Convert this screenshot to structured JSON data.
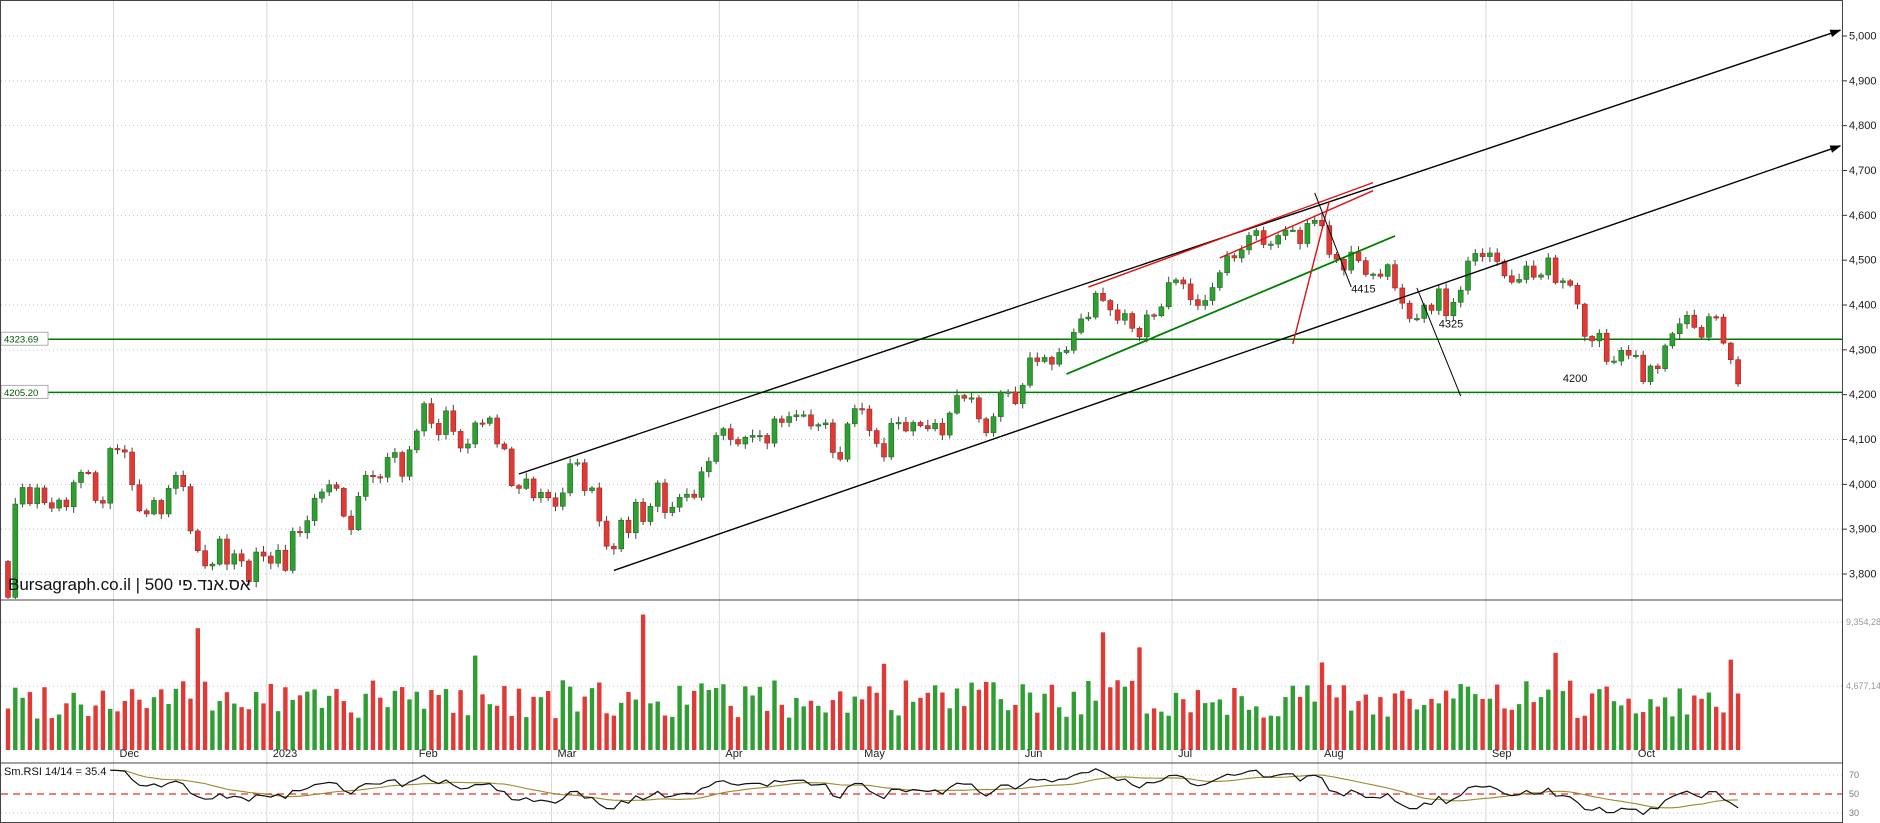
{
  "chart_data": {
    "type": "candlestick",
    "title": "Bursagraph.co.il | אס.אנד.פי 500",
    "price_axis": {
      "min": 3800,
      "max": 5000,
      "step": 100,
      "ticks": [
        "5,000",
        "4,900",
        "4,800",
        "4,700",
        "4,600",
        "4,500",
        "4,400",
        "4,300",
        "4,200",
        "4,100",
        "4,000",
        "3,900",
        "3,800"
      ]
    },
    "x_axis": {
      "months": [
        {
          "label": "Dec",
          "i": 15
        },
        {
          "label": "2023",
          "i": 36
        },
        {
          "label": "Feb",
          "i": 56
        },
        {
          "label": "Mar",
          "i": 75
        },
        {
          "label": "Apr",
          "i": 98
        },
        {
          "label": "May",
          "i": 117
        },
        {
          "label": "Jun",
          "i": 139
        },
        {
          "label": "Jul",
          "i": 160
        },
        {
          "label": "Aug",
          "i": 180
        },
        {
          "label": "Sep",
          "i": 203
        },
        {
          "label": "Oct",
          "i": 223
        }
      ]
    },
    "candles": {
      "first_open": 3828,
      "closes": [
        3748,
        3956,
        3993,
        3957,
        3992,
        3959,
        3947,
        3965,
        3950,
        4004,
        4027,
        4026,
        3964,
        3958,
        4080,
        4077,
        4072,
        3999,
        3941,
        3934,
        3964,
        3934,
        3991,
        4020,
        3995,
        3896,
        3852,
        3818,
        3822,
        3878,
        3822,
        3845,
        3829,
        3783,
        3849,
        3840,
        3824,
        3853,
        3808,
        3895,
        3892,
        3919,
        3969,
        3983,
        3999,
        3991,
        3929,
        3899,
        3973,
        4020,
        4017,
        4016,
        4060,
        4071,
        4018,
        4077,
        4119,
        4180,
        4136,
        4111,
        4164,
        4118,
        4081,
        4090,
        4137,
        4136,
        4148,
        4090,
        4079,
        3997,
        3991,
        4012,
        3970,
        3982,
        3970,
        3951,
        3981,
        4046,
        4048,
        3986,
        3992,
        3918,
        3862,
        3856,
        3920,
        3892,
        3960,
        3917,
        3951,
        4003,
        3937,
        3949,
        3971,
        3978,
        3971,
        4028,
        4051,
        4109,
        4124,
        4100,
        4090,
        4105,
        4109,
        4109,
        4092,
        4146,
        4138,
        4151,
        4155,
        4155,
        4130,
        4133,
        4137,
        4071,
        4056,
        4135,
        4169,
        4168,
        4120,
        4091,
        4061,
        4136,
        4138,
        4119,
        4138,
        4131,
        4124,
        4136,
        4110,
        4159,
        4198,
        4192,
        4193,
        4146,
        4115,
        4151,
        4205,
        4206,
        4180,
        4221,
        4282,
        4274,
        4283,
        4268,
        4294,
        4299,
        4339,
        4369,
        4373,
        4426,
        4410,
        4389,
        4366,
        4381,
        4348,
        4329,
        4378,
        4376,
        4396,
        4450,
        4456,
        4447,
        4412,
        4399,
        4410,
        4439,
        4472,
        4510,
        4505,
        4523,
        4555,
        4566,
        4535,
        4536,
        4555,
        4567,
        4567,
        4537,
        4582,
        4589,
        4577,
        4513,
        4502,
        4478,
        4518,
        4499,
        4468,
        4469,
        4464,
        4490,
        4438,
        4404,
        4370,
        4370,
        4400,
        4388,
        4436,
        4376,
        4406,
        4433,
        4498,
        4515,
        4508,
        4516,
        4497,
        4465,
        4451,
        4457,
        4487,
        4462,
        4467,
        4505,
        4450,
        4454,
        4444,
        4402,
        4330,
        4320,
        4337,
        4274,
        4275,
        4299,
        4288,
        4288,
        4229,
        4264,
        4258,
        4309,
        4336,
        4358,
        4377,
        4350,
        4328,
        4374,
        4373,
        4315,
        4278,
        4224
      ]
    },
    "support_lines": [
      {
        "label": "4323.69",
        "price": 4323.69
      },
      {
        "label": "4205.20",
        "price": 4205.2
      }
    ],
    "trendlines": [
      {
        "name": "channel-upper-line",
        "color": "#000000",
        "width": 1.4,
        "i1": 70,
        "p1": 4023,
        "i2": 251,
        "p2": 5013,
        "arrow": true
      },
      {
        "name": "channel-lower-line",
        "color": "#000000",
        "width": 1.4,
        "i1": 83,
        "p1": 3808,
        "i2": 251,
        "p2": 4755,
        "arrow": true
      },
      {
        "name": "green-trend-support-line",
        "color": "#008000",
        "width": 1.8,
        "i1": 145,
        "p1": 4246,
        "i2": 190,
        "p2": 4554,
        "arrow": false
      },
      {
        "name": "red-resistance-line",
        "color": "#dd1111",
        "width": 1.4,
        "i1": 148,
        "p1": 4440,
        "i2": 187,
        "p2": 4673,
        "arrow": false
      },
      {
        "name": "red-wedge-lower-line",
        "color": "#dd1111",
        "width": 1.4,
        "i1": 166,
        "p1": 4505,
        "i2": 187,
        "p2": 4655,
        "arrow": false
      },
      {
        "name": "red-breakdown-line",
        "color": "#dd1111",
        "width": 1.4,
        "i1": 176,
        "p1": 4313,
        "i2": 181,
        "p2": 4632,
        "arrow": false
      },
      {
        "name": "pointer-line-4415",
        "color": "#000000",
        "width": 1,
        "i1": 179,
        "p1": 4650,
        "i2": 184,
        "p2": 4440,
        "arrow": false
      },
      {
        "name": "pointer-line-4325",
        "color": "#000000",
        "width": 1,
        "i1": 193,
        "p1": 4438,
        "i2": 199,
        "p2": 4197,
        "arrow": false
      }
    ],
    "annotations": [
      {
        "text": "4415",
        "i": 184,
        "p": 4428
      },
      {
        "text": "4325",
        "i": 196,
        "p": 4350
      },
      {
        "text": "4200",
        "i": 213,
        "p": 4228
      }
    ],
    "volume": {
      "axis_labels": [
        {
          "text": "9,354,28",
          "value": 9354286
        },
        {
          "text": "4,677,14",
          "value": 4677143
        }
      ],
      "base_min": 2300000,
      "base_max": 5100000,
      "spikes": {
        "26": 8900000,
        "64": 6900000,
        "87": 9900000,
        "120": 6300000,
        "150": 8600000,
        "155": 7500000,
        "180": 6400000,
        "212": 7100000,
        "236": 6600000
      }
    },
    "rsi": {
      "label": "Sm.RSI 14/14 = 35.4",
      "period": 14,
      "smooth": 14,
      "last": 35.4,
      "mid": 50,
      "axis_ticks": [
        70,
        50,
        30
      ]
    }
  },
  "colors": {
    "up": "#2f9e33",
    "up_stroke": "#1b6f1e",
    "down": "#e03a36",
    "down_stroke": "#a32722",
    "wick": "#444444",
    "support_green": "#007a00",
    "grid": "#d9d9d9",
    "grid_dot": "#c4c4c4",
    "axis_text": "#1a1a1a",
    "vol_axis_text": "#999999",
    "rsi_line": "#111111",
    "rsi_signal": "#9a8a2a",
    "rsi_mid": "#e03030",
    "border": "#444444"
  }
}
